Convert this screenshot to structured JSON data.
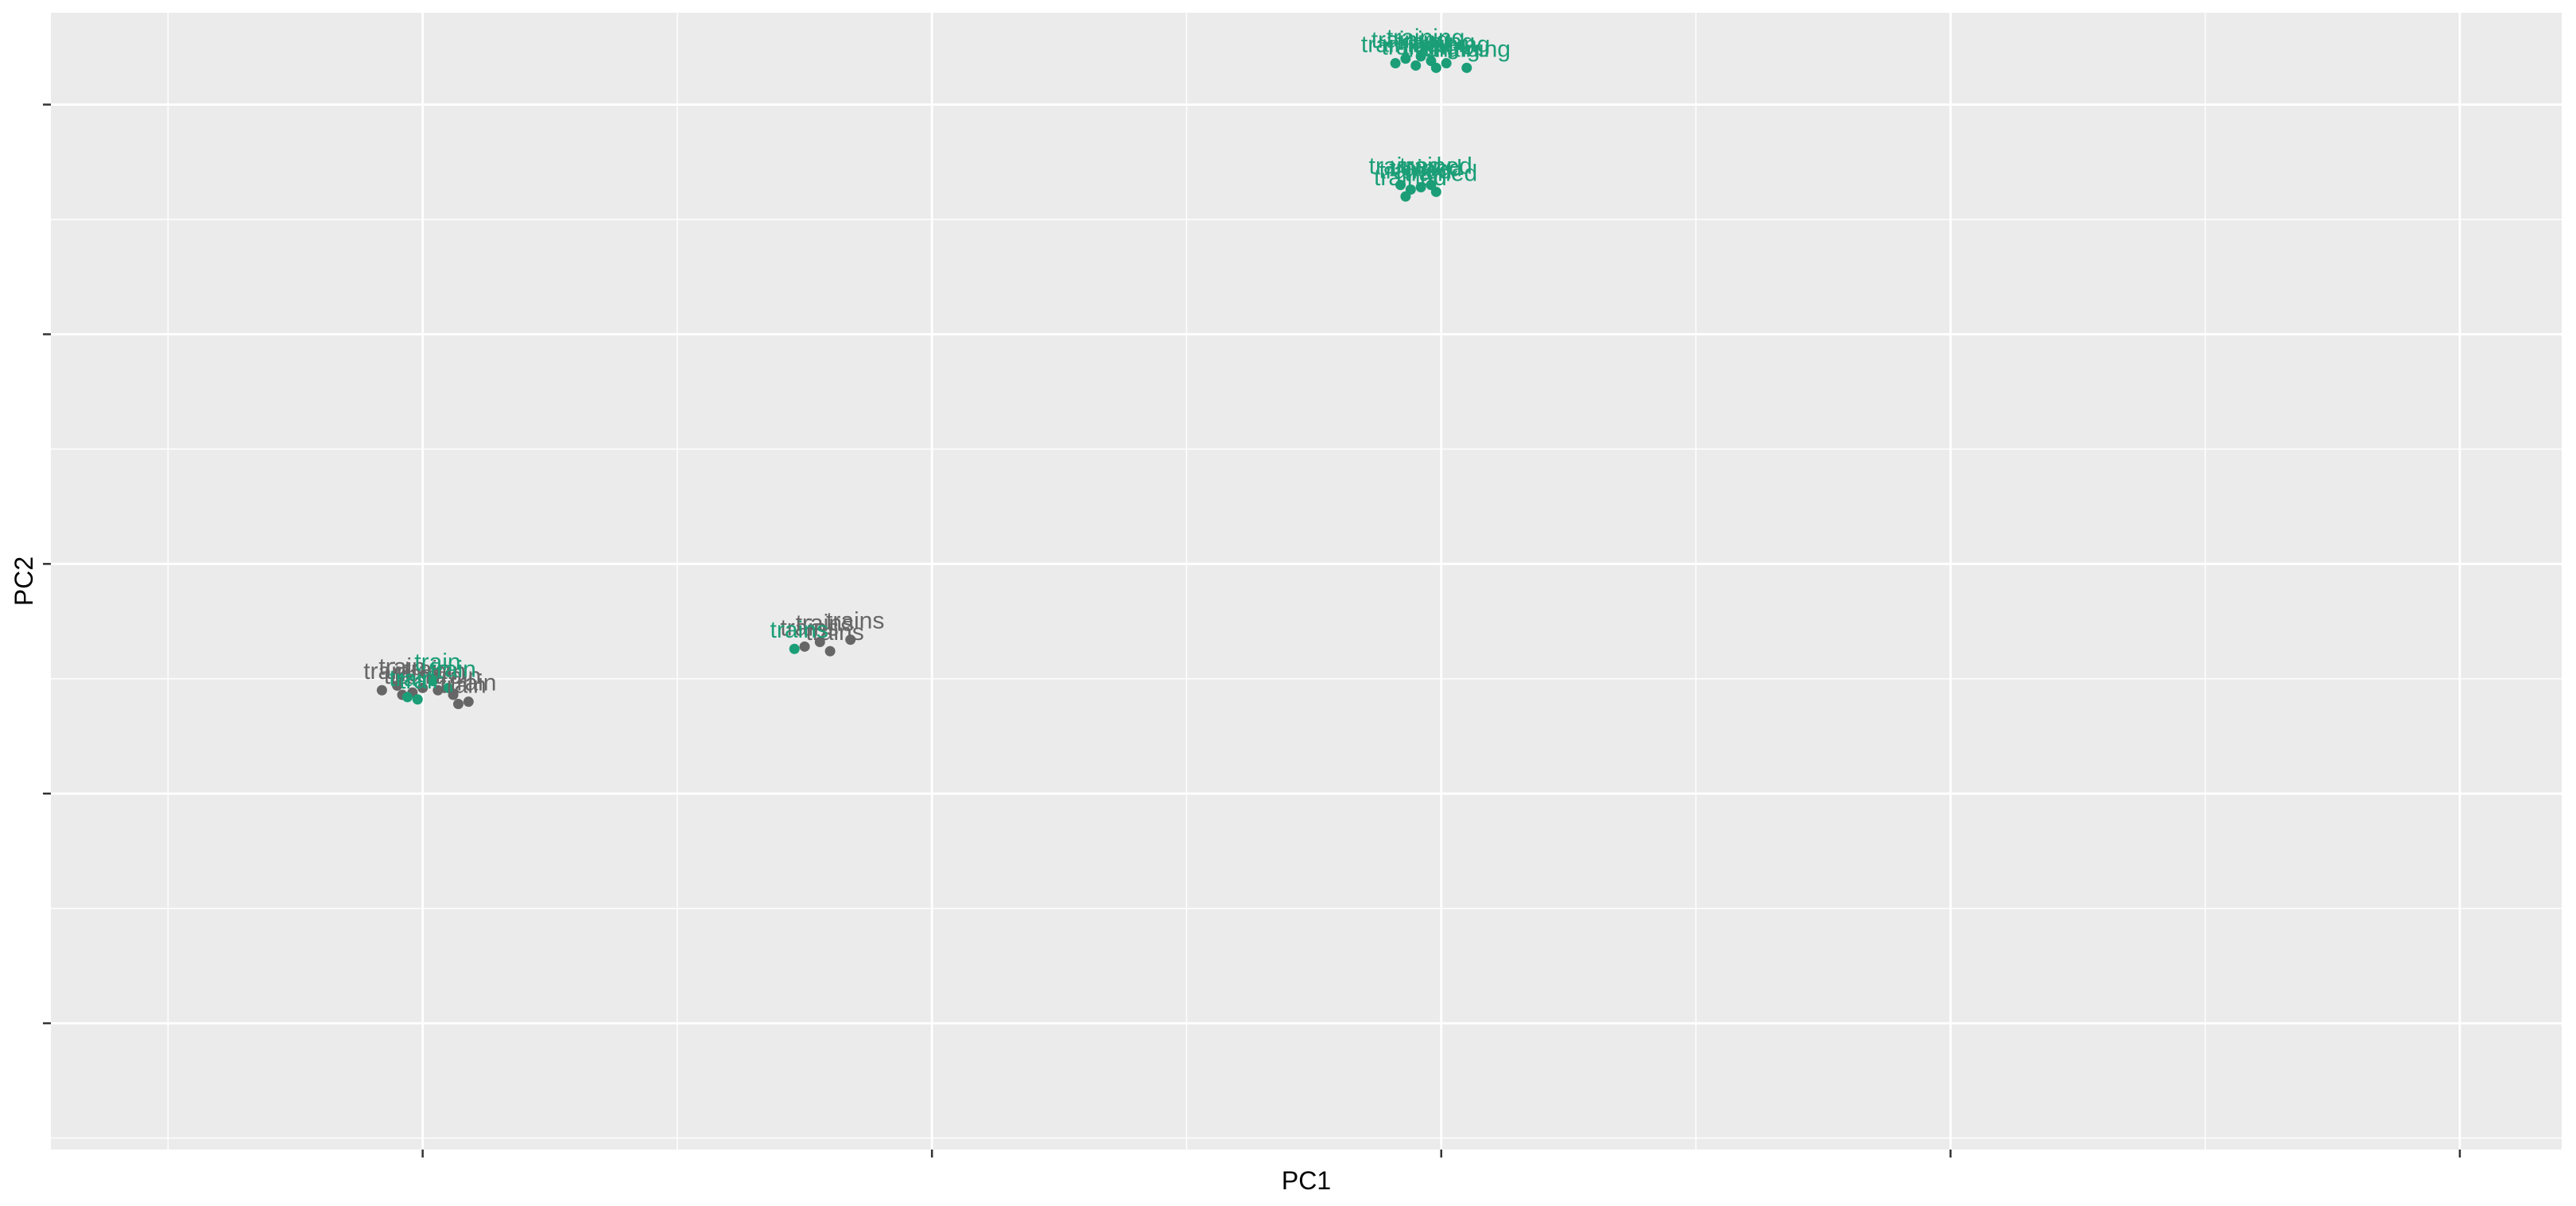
{
  "chart_data": {
    "type": "scatter",
    "title": "",
    "xlabel": "PC1",
    "ylabel": "PC2",
    "xlim": [
      -0.73,
      4.2
    ],
    "ylim": [
      -0.55,
      4.4
    ],
    "grid": true,
    "legend": "none",
    "x_ticks": [
      0,
      1,
      2,
      3,
      4
    ],
    "y_ticks": [
      0,
      1,
      2,
      3,
      4
    ],
    "tick_labels_shown": false,
    "colors": {
      "teal": "#1b9e77",
      "gray": "#666666",
      "panel": "#ebebeb",
      "grid": "#ffffff"
    },
    "points": [
      {
        "x": -0.08,
        "y": 1.45,
        "label": "train",
        "color": "gray"
      },
      {
        "x": -0.05,
        "y": 1.47,
        "label": "train",
        "color": "gray"
      },
      {
        "x": -0.02,
        "y": 1.44,
        "label": "train",
        "color": "gray"
      },
      {
        "x": 0.0,
        "y": 1.46,
        "label": "train",
        "color": "gray"
      },
      {
        "x": 0.03,
        "y": 1.45,
        "label": "train",
        "color": "gray"
      },
      {
        "x": -0.04,
        "y": 1.43,
        "label": "train",
        "color": "gray"
      },
      {
        "x": 0.06,
        "y": 1.43,
        "label": "train",
        "color": "gray"
      },
      {
        "x": 0.09,
        "y": 1.4,
        "label": "train",
        "color": "gray"
      },
      {
        "x": -0.01,
        "y": 1.41,
        "label": "train",
        "color": "teal"
      },
      {
        "x": 0.02,
        "y": 1.49,
        "label": "train",
        "color": "teal"
      },
      {
        "x": -0.03,
        "y": 1.42,
        "label": "train",
        "color": "teal"
      },
      {
        "x": 0.05,
        "y": 1.46,
        "label": "train",
        "color": "teal"
      },
      {
        "x": 0.07,
        "y": 1.39,
        "label": "train",
        "color": "gray"
      },
      {
        "x": 0.75,
        "y": 1.64,
        "label": "trains",
        "color": "gray"
      },
      {
        "x": 0.78,
        "y": 1.66,
        "label": "trains",
        "color": "gray"
      },
      {
        "x": 0.8,
        "y": 1.62,
        "label": "trains",
        "color": "gray"
      },
      {
        "x": 0.84,
        "y": 1.67,
        "label": "trains",
        "color": "gray"
      },
      {
        "x": 0.73,
        "y": 1.63,
        "label": "trains",
        "color": "teal"
      },
      {
        "x": 1.91,
        "y": 4.18,
        "label": "training",
        "color": "teal"
      },
      {
        "x": 1.93,
        "y": 4.2,
        "label": "training",
        "color": "teal"
      },
      {
        "x": 1.95,
        "y": 4.17,
        "label": "training",
        "color": "teal"
      },
      {
        "x": 1.98,
        "y": 4.19,
        "label": "training",
        "color": "teal"
      },
      {
        "x": 2.01,
        "y": 4.18,
        "label": "training",
        "color": "teal"
      },
      {
        "x": 2.05,
        "y": 4.16,
        "label": "training",
        "color": "teal"
      },
      {
        "x": 1.96,
        "y": 4.21,
        "label": "training",
        "color": "teal"
      },
      {
        "x": 1.99,
        "y": 4.16,
        "label": "training",
        "color": "teal"
      },
      {
        "x": 1.92,
        "y": 3.65,
        "label": "trained",
        "color": "teal"
      },
      {
        "x": 1.94,
        "y": 3.63,
        "label": "trained",
        "color": "teal"
      },
      {
        "x": 1.96,
        "y": 3.64,
        "label": "trained",
        "color": "teal"
      },
      {
        "x": 1.98,
        "y": 3.65,
        "label": "trained",
        "color": "teal"
      },
      {
        "x": 1.99,
        "y": 3.62,
        "label": "trained",
        "color": "teal"
      },
      {
        "x": 1.93,
        "y": 3.6,
        "label": "trained",
        "color": "teal"
      }
    ]
  }
}
